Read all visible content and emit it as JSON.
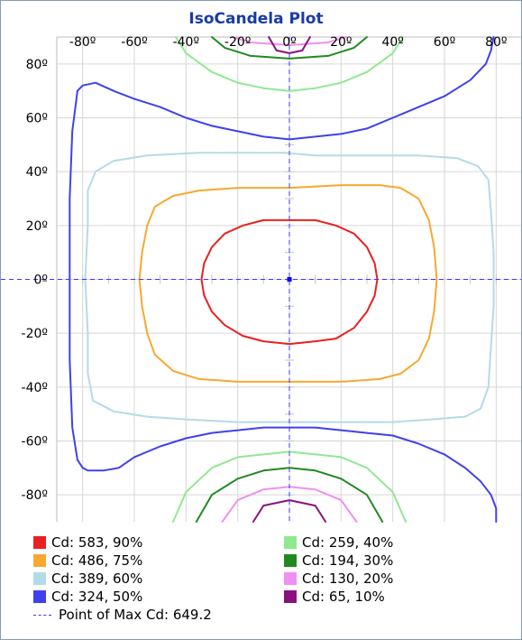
{
  "chart_data": {
    "type": "line",
    "title": "IsoCandela Plot",
    "x_ticks": [
      "-80º",
      "-60º",
      "-40º",
      "-20º",
      "0º",
      "20º",
      "40º",
      "60º",
      "80º"
    ],
    "y_ticks": [
      "80º",
      "60º",
      "40º",
      "20º",
      "0º",
      "-20º",
      "-40º",
      "-60º",
      "-80º"
    ],
    "xlim": [
      -90,
      90
    ],
    "ylim": [
      -90,
      90
    ],
    "grid": true,
    "legend_position": "bottom",
    "series": [
      {
        "name": "Cd: 583, 90%",
        "color": "#e82020",
        "contours": [
          [
            [
              0,
              22
            ],
            [
              10,
              22
            ],
            [
              18,
              20
            ],
            [
              25,
              17
            ],
            [
              30,
              12
            ],
            [
              33,
              6
            ],
            [
              34,
              0
            ],
            [
              33,
              -6
            ],
            [
              30,
              -12
            ],
            [
              25,
              -18
            ],
            [
              18,
              -22
            ],
            [
              10,
              -23
            ],
            [
              0,
              -24
            ],
            [
              -10,
              -23
            ],
            [
              -18,
              -21
            ],
            [
              -25,
              -17
            ],
            [
              -30,
              -12
            ],
            [
              -33,
              -6
            ],
            [
              -34,
              0
            ],
            [
              -33,
              6
            ],
            [
              -30,
              12
            ],
            [
              -25,
              17
            ],
            [
              -18,
              20
            ],
            [
              -10,
              22
            ],
            [
              0,
              22
            ]
          ]
        ]
      },
      {
        "name": "Cd: 486, 75%",
        "color": "#f8a830",
        "contours": [
          [
            [
              0,
              34
            ],
            [
              20,
              35
            ],
            [
              35,
              35
            ],
            [
              43,
              34
            ],
            [
              50,
              30
            ],
            [
              54,
              22
            ],
            [
              56,
              12
            ],
            [
              57,
              0
            ],
            [
              56,
              -12
            ],
            [
              54,
              -22
            ],
            [
              50,
              -30
            ],
            [
              43,
              -35
            ],
            [
              35,
              -37
            ],
            [
              20,
              -38
            ],
            [
              0,
              -38
            ],
            [
              -20,
              -38
            ],
            [
              -35,
              -37
            ],
            [
              -45,
              -34
            ],
            [
              -52,
              -28
            ],
            [
              -55,
              -20
            ],
            [
              -57,
              -10
            ],
            [
              -58,
              0
            ],
            [
              -57,
              10
            ],
            [
              -55,
              20
            ],
            [
              -52,
              27
            ],
            [
              -45,
              31
            ],
            [
              -35,
              33
            ],
            [
              -20,
              34
            ],
            [
              0,
              34
            ]
          ]
        ]
      },
      {
        "name": "Cd: 389, 60%",
        "color": "#b3dbe6",
        "contours": [
          [
            [
              -2,
              47
            ],
            [
              10,
              46
            ],
            [
              30,
              46
            ],
            [
              50,
              46
            ],
            [
              65,
              45
            ],
            [
              73,
              42
            ],
            [
              77,
              37
            ],
            [
              78,
              25
            ],
            [
              79,
              10
            ],
            [
              79,
              0
            ],
            [
              79,
              -10
            ],
            [
              78,
              -25
            ],
            [
              77,
              -40
            ],
            [
              74,
              -48
            ],
            [
              68,
              -51
            ],
            [
              55,
              -52
            ],
            [
              40,
              -53
            ],
            [
              20,
              -53
            ],
            [
              0,
              -53
            ],
            [
              -20,
              -53
            ],
            [
              -40,
              -52
            ],
            [
              -55,
              -51
            ],
            [
              -68,
              -49
            ],
            [
              -76,
              -45
            ],
            [
              -78,
              -35
            ],
            [
              -78,
              -20
            ],
            [
              -79,
              0
            ],
            [
              -78,
              20
            ],
            [
              -78,
              33
            ],
            [
              -75,
              40
            ],
            [
              -68,
              44
            ],
            [
              -55,
              46
            ],
            [
              -35,
              47
            ],
            [
              -15,
              47
            ],
            [
              -2,
              47
            ]
          ]
        ]
      },
      {
        "name": "Cd: 324, 50%",
        "color": "#4040ee",
        "contours": [
          [
            [
              -82,
              70
            ],
            [
              -80,
              72
            ],
            [
              -75,
              73
            ],
            [
              -68,
              70
            ],
            [
              -60,
              67
            ],
            [
              -50,
              64
            ],
            [
              -40,
              60
            ],
            [
              -30,
              57
            ],
            [
              -20,
              55
            ],
            [
              -10,
              53
            ],
            [
              0,
              52
            ],
            [
              10,
              53
            ],
            [
              20,
              54
            ],
            [
              30,
              56
            ],
            [
              40,
              60
            ],
            [
              50,
              64
            ],
            [
              60,
              68
            ],
            [
              70,
              74
            ],
            [
              76,
              80
            ],
            [
              78,
              85
            ],
            [
              79,
              90
            ]
          ],
          [
            [
              -80,
              -70
            ],
            [
              -78,
              -71
            ],
            [
              -72,
              -71
            ],
            [
              -66,
              -70
            ],
            [
              -60,
              -66
            ],
            [
              -50,
              -62
            ],
            [
              -40,
              -59
            ],
            [
              -30,
              -57
            ],
            [
              -20,
              -56
            ],
            [
              -10,
              -55
            ],
            [
              0,
              -55
            ],
            [
              10,
              -55
            ],
            [
              20,
              -56
            ],
            [
              30,
              -57
            ],
            [
              40,
              -58
            ],
            [
              50,
              -61
            ],
            [
              60,
              -65
            ],
            [
              68,
              -70
            ],
            [
              74,
              -75
            ],
            [
              78,
              -80
            ],
            [
              80,
              -85
            ],
            [
              80,
              -90
            ]
          ],
          [
            [
              -82,
              70
            ],
            [
              -84,
              55
            ],
            [
              -85,
              30
            ],
            [
              -85,
              0
            ],
            [
              -85,
              -30
            ],
            [
              -84,
              -55
            ],
            [
              -82,
              -67
            ],
            [
              -80,
              -70
            ]
          ]
        ]
      },
      {
        "name": "Cd: 259, 40%",
        "color": "#90e890",
        "contours": [
          [
            [
              -44,
              90
            ],
            [
              -40,
              84
            ],
            [
              -30,
              77
            ],
            [
              -20,
              73
            ],
            [
              -10,
              71
            ],
            [
              0,
              70
            ],
            [
              10,
              71
            ],
            [
              20,
              73
            ],
            [
              30,
              77
            ],
            [
              40,
              84
            ],
            [
              44,
              90
            ]
          ],
          [
            [
              -45,
              -90
            ],
            [
              -40,
              -79
            ],
            [
              -30,
              -70
            ],
            [
              -20,
              -66
            ],
            [
              -10,
              -65
            ],
            [
              0,
              -64
            ],
            [
              10,
              -65
            ],
            [
              20,
              -66
            ],
            [
              30,
              -70
            ],
            [
              40,
              -79
            ],
            [
              45,
              -90
            ]
          ]
        ]
      },
      {
        "name": "Cd: 194, 30%",
        "color": "#208a20",
        "contours": [
          [
            [
              -30,
              90
            ],
            [
              -25,
              86
            ],
            [
              -15,
              83
            ],
            [
              0,
              82
            ],
            [
              15,
              83
            ],
            [
              25,
              86
            ],
            [
              30,
              90
            ]
          ],
          [
            [
              -36,
              -90
            ],
            [
              -30,
              -80
            ],
            [
              -20,
              -74
            ],
            [
              -10,
              -71
            ],
            [
              0,
              -70
            ],
            [
              10,
              -71
            ],
            [
              20,
              -74
            ],
            [
              30,
              -80
            ],
            [
              36,
              -90
            ]
          ]
        ]
      },
      {
        "name": "Cd: 130, 20%",
        "color": "#f090f0",
        "contours": [
          [
            [
              -22,
              90
            ],
            [
              -15,
              88
            ],
            [
              0,
              87
            ],
            [
              15,
              88
            ],
            [
              22,
              90
            ]
          ],
          [
            [
              -26,
              -90
            ],
            [
              -20,
              -82
            ],
            [
              -10,
              -78
            ],
            [
              0,
              -77
            ],
            [
              10,
              -78
            ],
            [
              20,
              -82
            ],
            [
              26,
              -90
            ]
          ]
        ]
      },
      {
        "name": "Cd: 65, 10%",
        "color": "#8a1080",
        "contours": [
          [
            [
              -8,
              90
            ],
            [
              -5,
              85
            ],
            [
              0,
              84
            ],
            [
              5,
              85
            ],
            [
              8,
              90
            ]
          ],
          [
            [
              -14,
              -90
            ],
            [
              -10,
              -84
            ],
            [
              0,
              -82
            ],
            [
              10,
              -84
            ],
            [
              14,
              -90
            ]
          ]
        ]
      }
    ],
    "max_point": {
      "label": "Point of Max Cd: 649.2",
      "x": 0,
      "y": 0,
      "color": "#3a3aee"
    }
  }
}
